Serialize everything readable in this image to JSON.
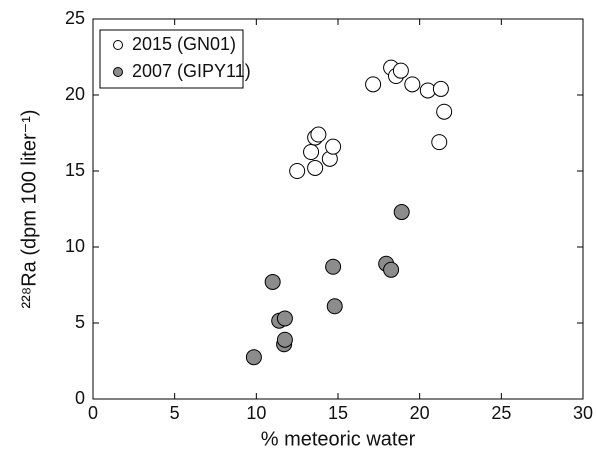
{
  "chart_data": {
    "type": "scatter",
    "xlabel": "% meteoric water",
    "ylabel": "²²⁸Ra (dpm 100 liter⁻¹)",
    "xlim": [
      0,
      30
    ],
    "xticks": [
      0,
      5,
      10,
      15,
      20,
      25,
      30
    ],
    "ylim": [
      0,
      25
    ],
    "yticks": [
      0,
      5,
      10,
      15,
      20,
      25
    ],
    "legend": "upper left",
    "series": [
      {
        "name": "2015 (GN01)",
        "color": "#ffffff",
        "x": [
          12.5,
          13.35,
          13.6,
          13.8,
          13.6,
          14.5,
          14.7,
          17.15,
          18.25,
          18.55,
          18.85,
          19.55,
          20.5,
          21.3,
          21.2,
          21.5
        ],
        "values": [
          15.0,
          16.25,
          17.2,
          17.4,
          15.2,
          15.8,
          16.6,
          20.7,
          21.8,
          21.25,
          21.6,
          20.7,
          20.3,
          20.4,
          16.9,
          18.9
        ]
      },
      {
        "name": "2007 (GIPY11)",
        "color": "#8c8c8c",
        "x": [
          9.85,
          11.0,
          11.4,
          11.75,
          11.7,
          11.75,
          14.7,
          14.8,
          17.95,
          18.25,
          18.9
        ],
        "values": [
          2.75,
          7.7,
          5.15,
          5.3,
          3.6,
          3.9,
          8.7,
          6.1,
          8.9,
          8.5,
          12.3
        ]
      }
    ]
  }
}
